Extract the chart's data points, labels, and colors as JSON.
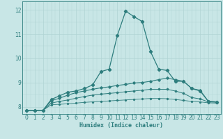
{
  "title": "",
  "xlabel": "Humidex (Indice chaleur)",
  "xlim": [
    -0.5,
    23.5
  ],
  "ylim": [
    7.7,
    12.35
  ],
  "xticks": [
    0,
    1,
    2,
    3,
    4,
    5,
    6,
    7,
    8,
    9,
    10,
    11,
    12,
    13,
    14,
    15,
    16,
    17,
    18,
    19,
    20,
    21,
    22,
    23
  ],
  "yticks": [
    8,
    9,
    10,
    11,
    12
  ],
  "bg_color": "#c8e6e6",
  "line_color": "#2d7d7d",
  "grid_color": "#b0d4d4",
  "lines": [
    [
      7.85,
      7.85,
      7.85,
      8.3,
      8.45,
      8.6,
      8.65,
      8.75,
      8.9,
      9.45,
      9.55,
      10.95,
      11.95,
      11.72,
      11.52,
      10.28,
      9.55,
      9.5,
      9.05,
      9.05,
      8.75,
      8.65,
      8.22,
      8.2
    ],
    [
      7.85,
      7.85,
      7.85,
      8.25,
      8.35,
      8.48,
      8.58,
      8.65,
      8.72,
      8.78,
      8.82,
      8.88,
      8.92,
      8.98,
      9.0,
      9.05,
      9.12,
      9.18,
      9.12,
      9.05,
      8.75,
      8.68,
      8.22,
      8.2
    ],
    [
      7.85,
      7.85,
      7.85,
      8.15,
      8.22,
      8.28,
      8.35,
      8.42,
      8.48,
      8.52,
      8.55,
      8.58,
      8.62,
      8.65,
      8.68,
      8.72,
      8.72,
      8.72,
      8.65,
      8.55,
      8.38,
      8.32,
      8.2,
      8.18
    ],
    [
      7.85,
      7.85,
      7.85,
      8.08,
      8.1,
      8.12,
      8.15,
      8.18,
      8.2,
      8.22,
      8.24,
      8.26,
      8.28,
      8.3,
      8.32,
      8.34,
      8.34,
      8.33,
      8.3,
      8.26,
      8.22,
      8.2,
      8.16,
      8.15
    ]
  ]
}
